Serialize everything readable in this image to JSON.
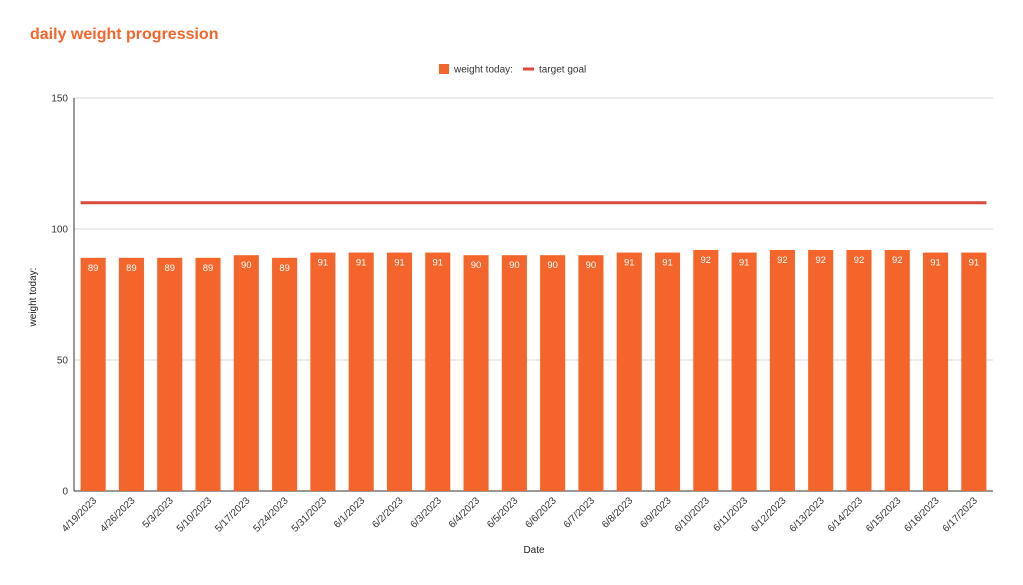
{
  "chart_data": {
    "type": "bar",
    "title": "daily weight progression",
    "xlabel": "Date",
    "ylabel": "weight today:",
    "ylim": [
      0,
      150
    ],
    "yticks": [
      0,
      50,
      100,
      150
    ],
    "legend_position": "top-center",
    "grid": true,
    "categories": [
      "4/19/2023",
      "4/26/2023",
      "5/3/2023",
      "5/10/2023",
      "5/17/2023",
      "5/24/2023",
      "5/31/2023",
      "6/1/2023",
      "6/2/2023",
      "6/3/2023",
      "6/4/2023",
      "6/5/2023",
      "6/6/2023",
      "6/7/2023",
      "6/8/2023",
      "6/9/2023",
      "6/10/2023",
      "6/11/2023",
      "6/12/2023",
      "6/13/2023",
      "6/14/2023",
      "6/15/2023",
      "6/16/2023",
      "6/17/2023"
    ],
    "series": [
      {
        "name": "weight today:",
        "kind": "bar",
        "color": "#f4652b",
        "values": [
          89,
          89,
          89,
          89,
          90,
          89,
          91,
          91,
          91,
          91,
          90,
          90,
          90,
          90,
          91,
          91,
          92,
          91,
          92,
          92,
          92,
          92,
          91,
          91
        ]
      },
      {
        "name": "target goal",
        "kind": "line",
        "color": "#d94a3a",
        "value": 110
      }
    ]
  }
}
